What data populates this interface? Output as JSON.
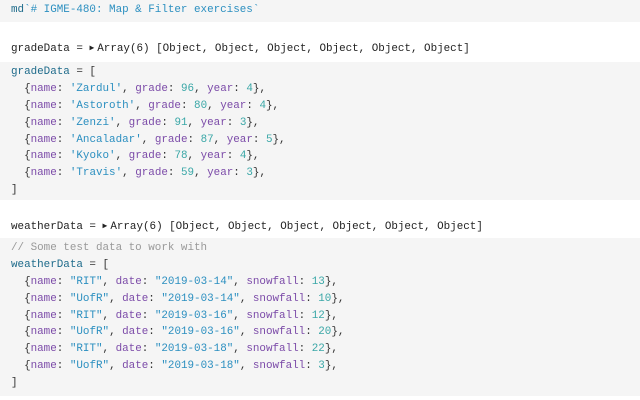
{
  "markdown_cell": {
    "prefix": "md",
    "text": "`# IGME-480: Map & Filter exercises`"
  },
  "grade_output": {
    "name": "gradeData",
    "eq": " = ",
    "toggle_icon": "triangle-right-icon",
    "summary": "Array(6) [Object, Object, Object, Object, Object, Object]"
  },
  "grade_code": [
    [
      [
        "v",
        "gradeData"
      ],
      [
        "p",
        " = ["
      ]
    ],
    [
      [
        "p",
        "  {"
      ],
      [
        "k",
        "name"
      ],
      [
        "p",
        ": "
      ],
      [
        "s",
        "'Zardul'"
      ],
      [
        "p",
        ", "
      ],
      [
        "k",
        "grade"
      ],
      [
        "p",
        ": "
      ],
      [
        "n",
        "96"
      ],
      [
        "p",
        ", "
      ],
      [
        "k",
        "year"
      ],
      [
        "p",
        ": "
      ],
      [
        "n",
        "4"
      ],
      [
        "p",
        "},"
      ]
    ],
    [
      [
        "p",
        "  {"
      ],
      [
        "k",
        "name"
      ],
      [
        "p",
        ": "
      ],
      [
        "s",
        "'Astoroth'"
      ],
      [
        "p",
        ", "
      ],
      [
        "k",
        "grade"
      ],
      [
        "p",
        ": "
      ],
      [
        "n",
        "80"
      ],
      [
        "p",
        ", "
      ],
      [
        "k",
        "year"
      ],
      [
        "p",
        ": "
      ],
      [
        "n",
        "4"
      ],
      [
        "p",
        "},"
      ]
    ],
    [
      [
        "p",
        "  {"
      ],
      [
        "k",
        "name"
      ],
      [
        "p",
        ": "
      ],
      [
        "s",
        "'Zenzi'"
      ],
      [
        "p",
        ", "
      ],
      [
        "k",
        "grade"
      ],
      [
        "p",
        ": "
      ],
      [
        "n",
        "91"
      ],
      [
        "p",
        ", "
      ],
      [
        "k",
        "year"
      ],
      [
        "p",
        ": "
      ],
      [
        "n",
        "3"
      ],
      [
        "p",
        "},"
      ]
    ],
    [
      [
        "p",
        "  {"
      ],
      [
        "k",
        "name"
      ],
      [
        "p",
        ": "
      ],
      [
        "s",
        "'Ancaladar'"
      ],
      [
        "p",
        ", "
      ],
      [
        "k",
        "grade"
      ],
      [
        "p",
        ": "
      ],
      [
        "n",
        "87"
      ],
      [
        "p",
        ", "
      ],
      [
        "k",
        "year"
      ],
      [
        "p",
        ": "
      ],
      [
        "n",
        "5"
      ],
      [
        "p",
        "},"
      ]
    ],
    [
      [
        "p",
        "  {"
      ],
      [
        "k",
        "name"
      ],
      [
        "p",
        ": "
      ],
      [
        "s",
        "'Kyoko'"
      ],
      [
        "p",
        ", "
      ],
      [
        "k",
        "grade"
      ],
      [
        "p",
        ": "
      ],
      [
        "n",
        "78"
      ],
      [
        "p",
        ", "
      ],
      [
        "k",
        "year"
      ],
      [
        "p",
        ": "
      ],
      [
        "n",
        "4"
      ],
      [
        "p",
        "},"
      ]
    ],
    [
      [
        "p",
        "  {"
      ],
      [
        "k",
        "name"
      ],
      [
        "p",
        ": "
      ],
      [
        "s",
        "'Travis'"
      ],
      [
        "p",
        ", "
      ],
      [
        "k",
        "grade"
      ],
      [
        "p",
        ": "
      ],
      [
        "n",
        "59"
      ],
      [
        "p",
        ", "
      ],
      [
        "k",
        "year"
      ],
      [
        "p",
        ": "
      ],
      [
        "n",
        "3"
      ],
      [
        "p",
        "},"
      ]
    ],
    [
      [
        "p",
        "]"
      ]
    ]
  ],
  "weather_output": {
    "name": "weatherData",
    "eq": " = ",
    "toggle_icon": "triangle-right-icon",
    "summary": "Array(6) [Object, Object, Object, Object, Object, Object]"
  },
  "weather_code": [
    [
      [
        "c",
        "// Some test data to work with"
      ]
    ],
    [
      [
        "v",
        "weatherData"
      ],
      [
        "p",
        " = ["
      ]
    ],
    [
      [
        "p",
        "  {"
      ],
      [
        "k",
        "name"
      ],
      [
        "p",
        ": "
      ],
      [
        "s",
        "\"RIT\""
      ],
      [
        "p",
        ", "
      ],
      [
        "k",
        "date"
      ],
      [
        "p",
        ": "
      ],
      [
        "s",
        "\"2019-03-14\""
      ],
      [
        "p",
        ", "
      ],
      [
        "k",
        "snowfall"
      ],
      [
        "p",
        ": "
      ],
      [
        "n",
        "13"
      ],
      [
        "p",
        "},"
      ]
    ],
    [
      [
        "p",
        "  {"
      ],
      [
        "k",
        "name"
      ],
      [
        "p",
        ": "
      ],
      [
        "s",
        "\"UofR\""
      ],
      [
        "p",
        ", "
      ],
      [
        "k",
        "date"
      ],
      [
        "p",
        ": "
      ],
      [
        "s",
        "\"2019-03-14\""
      ],
      [
        "p",
        ", "
      ],
      [
        "k",
        "snowfall"
      ],
      [
        "p",
        ": "
      ],
      [
        "n",
        "10"
      ],
      [
        "p",
        "},"
      ]
    ],
    [
      [
        "p",
        "  {"
      ],
      [
        "k",
        "name"
      ],
      [
        "p",
        ": "
      ],
      [
        "s",
        "\"RIT\""
      ],
      [
        "p",
        ", "
      ],
      [
        "k",
        "date"
      ],
      [
        "p",
        ": "
      ],
      [
        "s",
        "\"2019-03-16\""
      ],
      [
        "p",
        ", "
      ],
      [
        "k",
        "snowfall"
      ],
      [
        "p",
        ": "
      ],
      [
        "n",
        "12"
      ],
      [
        "p",
        "},"
      ]
    ],
    [
      [
        "p",
        "  {"
      ],
      [
        "k",
        "name"
      ],
      [
        "p",
        ": "
      ],
      [
        "s",
        "\"UofR\""
      ],
      [
        "p",
        ", "
      ],
      [
        "k",
        "date"
      ],
      [
        "p",
        ": "
      ],
      [
        "s",
        "\"2019-03-16\""
      ],
      [
        "p",
        ", "
      ],
      [
        "k",
        "snowfall"
      ],
      [
        "p",
        ": "
      ],
      [
        "n",
        "20"
      ],
      [
        "p",
        "},"
      ]
    ],
    [
      [
        "p",
        "  {"
      ],
      [
        "k",
        "name"
      ],
      [
        "p",
        ": "
      ],
      [
        "s",
        "\"RIT\""
      ],
      [
        "p",
        ", "
      ],
      [
        "k",
        "date"
      ],
      [
        "p",
        ": "
      ],
      [
        "s",
        "\"2019-03-18\""
      ],
      [
        "p",
        ", "
      ],
      [
        "k",
        "snowfall"
      ],
      [
        "p",
        ": "
      ],
      [
        "n",
        "22"
      ],
      [
        "p",
        "},"
      ]
    ],
    [
      [
        "p",
        "  {"
      ],
      [
        "k",
        "name"
      ],
      [
        "p",
        ": "
      ],
      [
        "s",
        "\"UofR\""
      ],
      [
        "p",
        ", "
      ],
      [
        "k",
        "date"
      ],
      [
        "p",
        ": "
      ],
      [
        "s",
        "\"2019-03-18\""
      ],
      [
        "p",
        ", "
      ],
      [
        "k",
        "snowfall"
      ],
      [
        "p",
        ": "
      ],
      [
        "n",
        "3"
      ],
      [
        "p",
        "},"
      ]
    ],
    [
      [
        "p",
        "]"
      ]
    ]
  ]
}
